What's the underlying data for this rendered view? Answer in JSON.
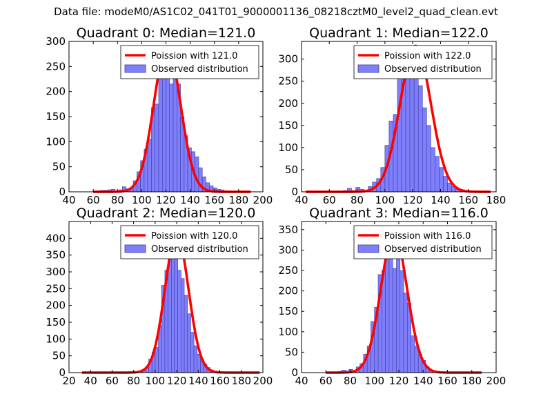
{
  "figure": {
    "suptitle": "Data file: modeM0/AS1C02_041T01_9000001136_08218cztM0_level2_quad_clean.evt",
    "poisson_color": "#ff0000",
    "bar_color": "#7f7ffc",
    "bar_edge_color": "#3a3aa0"
  },
  "chart_data": [
    {
      "type": "bar",
      "title": "Quadrant 0: Median=121.0",
      "legend_line": "Poission with 121.0",
      "legend_bar": "Observed distribution",
      "legend_position": "top-right",
      "xlim": [
        40,
        200
      ],
      "ylim": [
        0,
        300
      ],
      "xticks": [
        40,
        60,
        80,
        100,
        120,
        140,
        160,
        180,
        200
      ],
      "yticks": [
        0,
        50,
        100,
        150,
        200,
        250,
        300
      ],
      "bin_start": 60,
      "bin_width": 3,
      "bar_values": [
        1,
        2,
        3,
        3,
        4,
        5,
        2,
        4,
        10,
        6,
        8,
        22,
        40,
        62,
        85,
        105,
        168,
        175,
        235,
        290,
        242,
        215,
        255,
        215,
        150,
        112,
        88,
        80,
        70,
        48,
        30,
        18,
        12,
        8,
        5,
        4,
        2,
        1
      ],
      "poisson": {
        "mean": 121,
        "x_start": 60,
        "x_end": 190
      }
    },
    {
      "type": "bar",
      "title": "Quadrant 1: Median=122.0",
      "legend_line": "Poission with 122.0",
      "legend_bar": "Observed distribution",
      "legend_position": "top-right",
      "xlim": [
        40,
        180
      ],
      "ylim": [
        0,
        340
      ],
      "xticks": [
        40,
        60,
        80,
        100,
        120,
        140,
        160,
        180
      ],
      "yticks": [
        0,
        50,
        100,
        150,
        200,
        250,
        300
      ],
      "bin_start": 70,
      "bin_width": 3,
      "bar_values": [
        3,
        8,
        3,
        10,
        6,
        4,
        12,
        22,
        30,
        55,
        105,
        160,
        175,
        265,
        295,
        330,
        260,
        280,
        240,
        190,
        150,
        100,
        80,
        55,
        35,
        20,
        12,
        6,
        3,
        2
      ],
      "poisson": {
        "mean": 122,
        "x_start": 43,
        "x_end": 176
      }
    },
    {
      "type": "bar",
      "title": "Quadrant 2: Median=120.0",
      "legend_line": "Poission with 120.0",
      "legend_bar": "Observed distribution",
      "legend_position": "top-right",
      "xlim": [
        20,
        200
      ],
      "ylim": [
        0,
        450
      ],
      "xticks": [
        20,
        40,
        60,
        80,
        100,
        120,
        140,
        160,
        180,
        200
      ],
      "yticks": [
        0,
        50,
        100,
        150,
        200,
        250,
        300,
        350,
        400
      ],
      "bin_start": 85,
      "bin_width": 3,
      "bar_values": [
        2,
        5,
        15,
        40,
        60,
        75,
        140,
        260,
        305,
        340,
        410,
        355,
        305,
        280,
        230,
        175,
        120,
        80,
        55,
        40,
        25,
        15,
        8,
        5,
        3
      ],
      "poisson": {
        "mean": 120,
        "x_start": 32,
        "x_end": 197
      }
    },
    {
      "type": "bar",
      "title": "Quadrant 3: Median=116.0",
      "legend_line": "Poission with 116.0",
      "legend_bar": "Observed distribution",
      "legend_position": "top-right",
      "xlim": [
        40,
        200
      ],
      "ylim": [
        0,
        370
      ],
      "xticks": [
        40,
        60,
        80,
        100,
        120,
        140,
        160,
        180,
        200
      ],
      "yticks": [
        0,
        50,
        100,
        150,
        200,
        250,
        300,
        350
      ],
      "bin_start": 70,
      "bin_width": 3,
      "bar_values": [
        3,
        6,
        4,
        8,
        5,
        14,
        22,
        45,
        65,
        125,
        160,
        240,
        250,
        340,
        300,
        255,
        305,
        250,
        195,
        170,
        90,
        65,
        45,
        30,
        15,
        6,
        3,
        2
      ],
      "poisson": {
        "mean": 116,
        "x_start": 60,
        "x_end": 188
      }
    }
  ]
}
